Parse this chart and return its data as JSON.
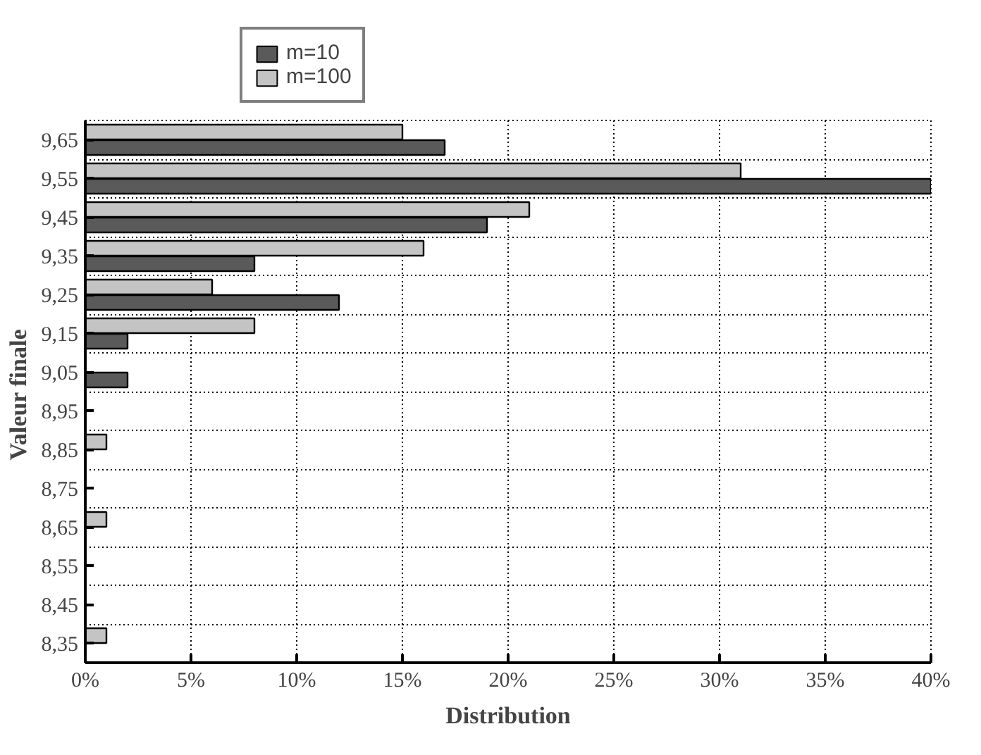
{
  "chart_data": {
    "type": "bar",
    "orientation": "horizontal",
    "xlabel": "Distribution",
    "ylabel": "Valeur  finale",
    "categories": [
      "9,65",
      "9,55",
      "9,45",
      "9,35",
      "9,25",
      "9,15",
      "9,05",
      "8,95",
      "8,85",
      "8,75",
      "8,65",
      "8,55",
      "8,45",
      "8,35"
    ],
    "series": [
      {
        "name": "m=10",
        "color": "#5a5a5a",
        "values": [
          17,
          40,
          19,
          8,
          12,
          2,
          2,
          null,
          null,
          null,
          null,
          null,
          null,
          null
        ]
      },
      {
        "name": "m=100",
        "color": "#c4c4c4",
        "values": [
          15,
          31,
          21,
          16,
          6,
          8,
          null,
          null,
          1,
          null,
          1,
          null,
          null,
          1
        ]
      }
    ],
    "xlim": [
      0,
      40
    ],
    "xticks": [
      {
        "value": 0,
        "label": "0%"
      },
      {
        "value": 5,
        "label": "5%"
      },
      {
        "value": 10,
        "label": "10%"
      },
      {
        "value": 15,
        "label": "15%"
      },
      {
        "value": 20,
        "label": "20%"
      },
      {
        "value": 25,
        "label": "25%"
      },
      {
        "value": 30,
        "label": "30%"
      },
      {
        "value": 35,
        "label": "35%"
      },
      {
        "value": 40,
        "label": "40%"
      }
    ],
    "grid": true,
    "legend": "top left"
  }
}
